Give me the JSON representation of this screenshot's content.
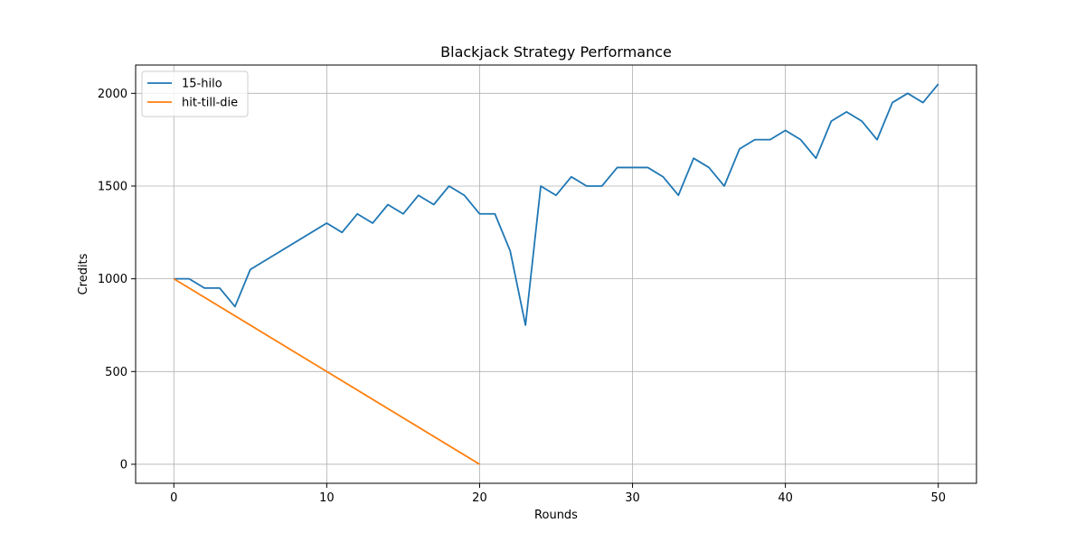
{
  "chart_data": {
    "type": "line",
    "title": "Blackjack Strategy Performance",
    "xlabel": "Rounds",
    "ylabel": "Credits",
    "xlim": [
      -2.5,
      52.5
    ],
    "ylim": [
      -102.5,
      2152.5
    ],
    "xticks": [
      0,
      10,
      20,
      30,
      40,
      50
    ],
    "yticks": [
      0,
      500,
      1000,
      1500,
      2000
    ],
    "grid": true,
    "legend": "top-left",
    "series": [
      {
        "name": "15-hilo",
        "color": "#1f77b4",
        "x": [
          0,
          1,
          2,
          3,
          4,
          5,
          10,
          11,
          12,
          13,
          14,
          15,
          16,
          17,
          18,
          19,
          20,
          21,
          22,
          23,
          24,
          25,
          26,
          27,
          28,
          29,
          30,
          31,
          32,
          33,
          34,
          35,
          36,
          37,
          38,
          39,
          40,
          41,
          42,
          43,
          44,
          45,
          46,
          47,
          48,
          49,
          50
        ],
        "y": [
          1000,
          1000,
          950,
          950,
          850,
          1050,
          1300,
          1250,
          1350,
          1300,
          1400,
          1350,
          1450,
          1400,
          1500,
          1450,
          1350,
          1350,
          1150,
          750,
          1500,
          1450,
          1550,
          1500,
          1500,
          1600,
          1600,
          1600,
          1550,
          1450,
          1650,
          1600,
          1500,
          1700,
          1750,
          1750,
          1800,
          1750,
          1650,
          1850,
          1900,
          1850,
          1750,
          1950,
          2000,
          1950,
          2050
        ]
      },
      {
        "name": "hit-till-die",
        "color": "#ff7f0e",
        "x": [
          0,
          10,
          20
        ],
        "y": [
          1000,
          500,
          0
        ]
      }
    ]
  }
}
